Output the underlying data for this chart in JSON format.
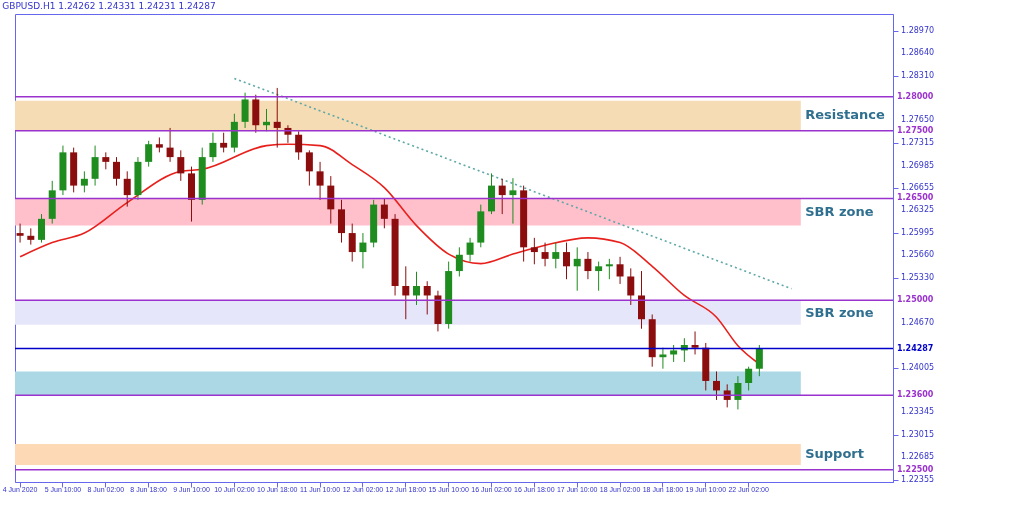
{
  "chart_data": {
    "type": "candlestick",
    "title": "GBPUSD.H1  1.24262 1.24331 1.24231 1.24287",
    "categories": [
      "4 Jun 2020",
      null,
      null,
      null,
      "5 Jun 10:00",
      null,
      null,
      null,
      "8 Jun 02:00",
      null,
      null,
      null,
      "8 Jun 18:00",
      null,
      null,
      null,
      "9 Jun 10:00",
      null,
      null,
      null,
      "10 Jun 02:00",
      null,
      null,
      null,
      "10 Jun 18:00",
      null,
      null,
      null,
      "11 Jun 10:00",
      null,
      null,
      null,
      "12 Jun 02:00",
      null,
      null,
      null,
      "12 Jun 18:00",
      null,
      null,
      null,
      "15 Jun 10:00",
      null,
      null,
      null,
      "16 Jun 02:00",
      null,
      null,
      null,
      "16 Jun 18:00",
      null,
      null,
      null,
      "17 Jun 10:00",
      null,
      null,
      null,
      "18 Jun 02:00",
      null,
      null,
      null,
      "18 Jun 18:00",
      null,
      null,
      null,
      "19 Jun 10:00",
      null,
      null,
      null,
      "22 Jun 02:00",
      null,
      null,
      null,
      null,
      null,
      null,
      null,
      null,
      null,
      null,
      null,
      null,
      null
    ],
    "ohlc": [
      [
        1.2599,
        1.2613,
        1.2585,
        1.2595
      ],
      [
        1.2595,
        1.2606,
        1.2582,
        1.2589
      ],
      [
        1.2589,
        1.2627,
        1.2585,
        1.262
      ],
      [
        1.262,
        1.2676,
        1.2613,
        1.2662
      ],
      [
        1.2662,
        1.2728,
        1.2655,
        1.2718
      ],
      [
        1.2718,
        1.2725,
        1.2659,
        1.2669
      ],
      [
        1.2669,
        1.269,
        1.2659,
        1.2679
      ],
      [
        1.2679,
        1.2728,
        1.2669,
        1.2711
      ],
      [
        1.2711,
        1.2718,
        1.2693,
        1.2704
      ],
      [
        1.2704,
        1.2711,
        1.2669,
        1.2679
      ],
      [
        1.2679,
        1.269,
        1.2638,
        1.2655
      ],
      [
        1.2655,
        1.2711,
        1.2648,
        1.2704
      ],
      [
        1.2704,
        1.2735,
        1.2697,
        1.273
      ],
      [
        1.273,
        1.274,
        1.2718,
        1.2725
      ],
      [
        1.2725,
        1.2754,
        1.2704,
        1.2711
      ],
      [
        1.2711,
        1.2721,
        1.2676,
        1.2687
      ],
      [
        1.2687,
        1.2697,
        1.2616,
        1.2648
      ],
      [
        1.2648,
        1.2725,
        1.2641,
        1.2711
      ],
      [
        1.2711,
        1.2747,
        1.2704,
        1.2732
      ],
      [
        1.2732,
        1.2747,
        1.2718,
        1.2725
      ],
      [
        1.2725,
        1.2775,
        1.2718,
        1.2763
      ],
      [
        1.2763,
        1.2806,
        1.2754,
        1.2796
      ],
      [
        1.2796,
        1.2803,
        1.2747,
        1.2758
      ],
      [
        1.2758,
        1.2782,
        1.2749,
        1.2763
      ],
      [
        1.2763,
        1.2813,
        1.2725,
        1.2754
      ],
      [
        1.2754,
        1.2758,
        1.2732,
        1.2744
      ],
      [
        1.2744,
        1.2749,
        1.2707,
        1.2718
      ],
      [
        1.2718,
        1.2721,
        1.2669,
        1.269
      ],
      [
        1.269,
        1.2704,
        1.2648,
        1.2669
      ],
      [
        1.2669,
        1.2683,
        1.2613,
        1.2634
      ],
      [
        1.2634,
        1.2648,
        1.2585,
        1.2599
      ],
      [
        1.2599,
        1.2613,
        1.2557,
        1.2571
      ],
      [
        1.2571,
        1.2599,
        1.2547,
        1.2585
      ],
      [
        1.2585,
        1.2648,
        1.2578,
        1.2641
      ],
      [
        1.2641,
        1.265,
        1.2606,
        1.262
      ],
      [
        1.262,
        1.2627,
        1.2507,
        1.2521
      ],
      [
        1.2521,
        1.255,
        1.2472,
        1.2507
      ],
      [
        1.2507,
        1.2542,
        1.2493,
        1.2521
      ],
      [
        1.2521,
        1.2528,
        1.2479,
        1.2507
      ],
      [
        1.2507,
        1.2514,
        1.2454,
        1.2465
      ],
      [
        1.2465,
        1.2557,
        1.2458,
        1.2543
      ],
      [
        1.2543,
        1.2578,
        1.2535,
        1.2567
      ],
      [
        1.2567,
        1.2592,
        1.2557,
        1.2585
      ],
      [
        1.2585,
        1.2641,
        1.2578,
        1.2631
      ],
      [
        1.2631,
        1.2687,
        1.2627,
        1.2669
      ],
      [
        1.2669,
        1.2679,
        1.2627,
        1.2655
      ],
      [
        1.2655,
        1.268,
        1.2613,
        1.2662
      ],
      [
        1.2662,
        1.2669,
        1.2557,
        1.2578
      ],
      [
        1.2578,
        1.2592,
        1.2553,
        1.2571
      ],
      [
        1.2571,
        1.2585,
        1.255,
        1.2561
      ],
      [
        1.2561,
        1.2585,
        1.2547,
        1.2571
      ],
      [
        1.2571,
        1.2585,
        1.2531,
        1.255
      ],
      [
        1.255,
        1.2578,
        1.2514,
        1.2561
      ],
      [
        1.2561,
        1.2571,
        1.2531,
        1.2543
      ],
      [
        1.2543,
        1.2557,
        1.2514,
        1.255
      ],
      [
        1.255,
        1.2561,
        1.2531,
        1.2553
      ],
      [
        1.2553,
        1.2564,
        1.2524,
        1.2535
      ],
      [
        1.2535,
        1.2547,
        1.2493,
        1.2507
      ],
      [
        1.2507,
        1.2543,
        1.2458,
        1.2472
      ],
      [
        1.2472,
        1.2479,
        1.2402,
        1.2416
      ],
      [
        1.2416,
        1.243,
        1.2399,
        1.242
      ],
      [
        1.242,
        1.2434,
        1.2409,
        1.2426
      ],
      [
        1.2426,
        1.2444,
        1.2409,
        1.2434
      ],
      [
        1.2434,
        1.2454,
        1.242,
        1.243
      ],
      [
        1.243,
        1.2437,
        1.2367,
        1.2381
      ],
      [
        1.2381,
        1.2395,
        1.2353,
        1.2367
      ],
      [
        1.2367,
        1.2376,
        1.2342,
        1.2353
      ],
      [
        1.2353,
        1.2388,
        1.2339,
        1.2378
      ],
      [
        1.2378,
        1.2402,
        1.2367,
        1.2399
      ],
      [
        1.2399,
        1.2434,
        1.2388,
        1.2429
      ],
      null,
      null,
      null,
      null,
      null,
      null,
      null,
      null,
      null,
      null,
      null,
      null
    ],
    "colors": [
      "#8b0d0d",
      "#8b0d0d",
      "#1e8c1e",
      "#1e8c1e",
      "#1e8c1e",
      "#8b0d0d",
      "#1e8c1e",
      "#1e8c1e",
      "#8b0d0d",
      "#8b0d0d",
      "#8b0d0d",
      "#1e8c1e",
      "#1e8c1e",
      "#8b0d0d",
      "#8b0d0d",
      "#8b0d0d",
      "#8b0d0d",
      "#1e8c1e",
      "#1e8c1e",
      "#8b0d0d",
      "#1e8c1e",
      "#1e8c1e",
      "#8b0d0d",
      "#1e8c1e",
      "#8b0d0d",
      "#8b0d0d",
      "#8b0d0d",
      "#8b0d0d",
      "#8b0d0d",
      "#8b0d0d",
      "#8b0d0d",
      "#8b0d0d",
      "#1e8c1e",
      "#1e8c1e",
      "#8b0d0d",
      "#8b0d0d",
      "#8b0d0d",
      "#1e8c1e",
      "#8b0d0d",
      "#8b0d0d",
      "#1e8c1e",
      "#1e8c1e",
      "#1e8c1e",
      "#1e8c1e",
      "#1e8c1e",
      "#8b0d0d",
      "#1e8c1e",
      "#8b0d0d",
      "#8b0d0d",
      "#8b0d0d",
      "#1e8c1e",
      "#8b0d0d",
      "#1e8c1e",
      "#8b0d0d",
      "#1e8c1e",
      "#1e8c1e",
      "#8b0d0d",
      "#8b0d0d",
      "#8b0d0d",
      "#8b0d0d",
      "#1e8c1e",
      "#1e8c1e",
      "#1e8c1e",
      "#8b0d0d",
      "#8b0d0d",
      "#8b0d0d",
      "#8b0d0d",
      "#1e8c1e",
      "#1e8c1e",
      "#1e8c1e",
      null,
      null,
      null,
      null,
      null,
      null,
      null,
      null,
      null,
      null,
      null,
      null
    ],
    "series": [
      {
        "type": "line",
        "color": "#e8201c",
        "line_style": "solid",
        "values": [
          1.2564,
          null,
          null,
          1.2585,
          null,
          null,
          1.2599,
          null,
          null,
          null,
          1.2644,
          null,
          null,
          null,
          null,
          1.269,
          null,
          1.2693,
          null,
          null,
          null,
          null,
          null,
          1.2728,
          null,
          1.273,
          null,
          null,
          1.2728,
          null,
          null,
          1.27,
          null,
          null,
          1.2666,
          null,
          null,
          1.261,
          null,
          null,
          1.2568,
          null,
          null,
          1.2554,
          null,
          null,
          1.2568,
          null,
          null,
          1.2581,
          null,
          null,
          null,
          1.2592,
          null,
          null,
          1.2585,
          null,
          null,
          1.255,
          null,
          null,
          1.2507,
          null,
          null,
          1.2475,
          null,
          1.2433,
          null,
          1.2406,
          null,
          null,
          null,
          null,
          null,
          null,
          null,
          null,
          null,
          null,
          null,
          null
        ]
      },
      {
        "type": "line",
        "color": "#5fa8a8",
        "line_style": "dotted",
        "values": [
          null,
          null,
          null,
          null,
          null,
          null,
          null,
          null,
          null,
          null,
          null,
          null,
          null,
          null,
          null,
          null,
          null,
          null,
          null,
          null,
          1.2827,
          null,
          null,
          null,
          null,
          null,
          null,
          null,
          null,
          null,
          null,
          null,
          null,
          null,
          null,
          null,
          null,
          null,
          null,
          null,
          null,
          null,
          null,
          null,
          null,
          null,
          null,
          null,
          null,
          null,
          null,
          null,
          null,
          null,
          null,
          null,
          null,
          null,
          null,
          null,
          null,
          null,
          null,
          null,
          null,
          null,
          null,
          null,
          null,
          null,
          null,
          null,
          1.2517,
          null,
          null,
          null,
          null,
          null,
          null,
          null,
          null,
          null
        ]
      }
    ],
    "ylim": [
      1.2232,
      1.2922
    ],
    "yticks": [
      {
        "value": 1.2897,
        "label": "1.28970"
      },
      {
        "value": 1.2864,
        "label": "1.28640"
      },
      {
        "value": 1.2831,
        "label": "1.28310"
      },
      {
        "value": 1.2765,
        "label": "1.27650"
      },
      {
        "value": 1.27315,
        "label": "1.27315"
      },
      {
        "value": 1.26985,
        "label": "1.26985"
      },
      {
        "value": 1.26655,
        "label": "1.26655"
      },
      {
        "value": 1.26325,
        "label": "1.26325"
      },
      {
        "value": 1.25995,
        "label": "1.25995"
      },
      {
        "value": 1.2566,
        "label": "1.25660"
      },
      {
        "value": 1.2533,
        "label": "1.25330"
      },
      {
        "value": 1.2467,
        "label": "1.24670"
      },
      {
        "value": 1.24005,
        "label": "1.24005"
      },
      {
        "value": 1.23345,
        "label": "1.23345"
      },
      {
        "value": 1.23015,
        "label": "1.23015"
      },
      {
        "value": 1.22685,
        "label": "1.22685"
      },
      {
        "value": 1.22355,
        "label": "1.22355"
      }
    ],
    "bands": [
      {
        "axis": "y",
        "from": 1.2751,
        "to": 1.2794,
        "label": "Resistance",
        "color": "#f5dcb4"
      },
      {
        "axis": "y",
        "from": 1.261,
        "to": 1.26495,
        "label": "SBR zone",
        "color": "#ffc0cb"
      },
      {
        "axis": "y",
        "from": 1.24638,
        "to": 1.25,
        "label": "SBR zone",
        "color": "#e6e6fa"
      },
      {
        "axis": "y",
        "from": 1.23597,
        "to": 1.23949,
        "label": null,
        "color": "#acd8e6"
      },
      {
        "axis": "y",
        "from": 1.22571,
        "to": 1.2288,
        "label": "Support",
        "color": "#fdd9b5"
      }
    ],
    "ref_lines": [
      {
        "axis": "y",
        "value": 1.28,
        "label": "1.28000",
        "color": "#9a32cd"
      },
      {
        "axis": "y",
        "value": 1.275,
        "label": "1.27500",
        "color": "#9a32cd"
      },
      {
        "axis": "y",
        "value": 1.265,
        "label": "1.26500",
        "color": "#9a32cd"
      },
      {
        "axis": "y",
        "value": 1.25,
        "label": "1.25000",
        "color": "#9a32cd"
      },
      {
        "axis": "y",
        "value": 1.24287,
        "label": "1.24287",
        "color": "#0000c8"
      },
      {
        "axis": "y",
        "value": 1.236,
        "label": "1.23600",
        "color": "#9a32cd"
      },
      {
        "axis": "y",
        "value": 1.225,
        "label": "1.22500",
        "color": "#9a32cd"
      }
    ],
    "grid": false
  }
}
